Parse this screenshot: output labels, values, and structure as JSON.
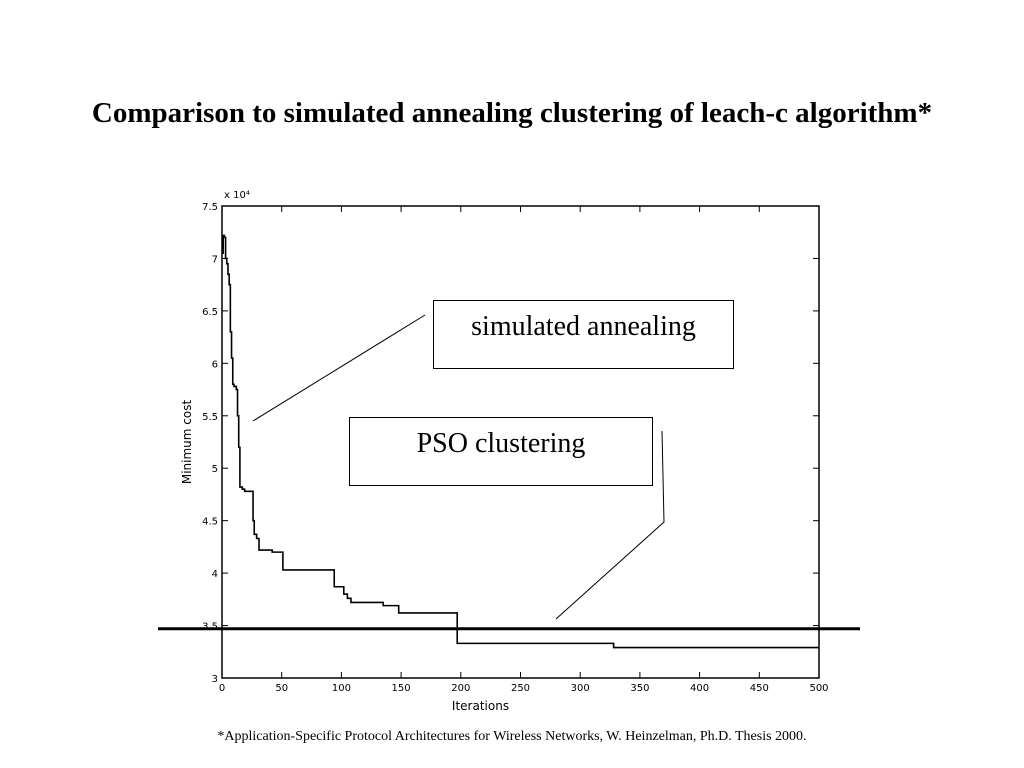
{
  "slide": {
    "title": "Comparison to simulated annealing clustering of leach-c algorithm*",
    "footnote": "*Application-Specific Protocol Architectures for Wireless Networks, W. Heinzelman, Ph.D. Thesis 2000."
  },
  "callouts": {
    "simulated_annealing": "simulated annealing",
    "pso_clustering": "PSO clustering"
  },
  "chart_data": {
    "type": "line",
    "xlabel": "Iterations",
    "ylabel": "Minimum cost",
    "y_exponent_label": "x 10⁴",
    "xlim": [
      0,
      500
    ],
    "ylim": [
      3,
      7.5
    ],
    "x_ticks": [
      "0",
      "50",
      "100",
      "150",
      "200",
      "250",
      "300",
      "350",
      "400",
      "450",
      "500"
    ],
    "y_ticks": [
      "3",
      "3.5",
      "4",
      "4.5",
      "5",
      "5.5",
      "6",
      "6.5",
      "7",
      "7.5"
    ],
    "grid": false,
    "series": [
      {
        "name": "simulated annealing",
        "color": "#000000",
        "step": true,
        "points": [
          [
            0,
            7.05
          ],
          [
            1,
            7.22
          ],
          [
            2,
            7.2
          ],
          [
            3,
            7.0
          ],
          [
            4,
            6.95
          ],
          [
            5,
            6.85
          ],
          [
            6,
            6.75
          ],
          [
            7,
            6.3
          ],
          [
            8,
            6.05
          ],
          [
            9,
            5.8
          ],
          [
            10,
            5.78
          ],
          [
            12,
            5.75
          ],
          [
            13,
            5.5
          ],
          [
            14,
            5.2
          ],
          [
            15,
            4.82
          ],
          [
            17,
            4.8
          ],
          [
            19,
            4.78
          ],
          [
            25,
            4.78
          ],
          [
            26,
            4.5
          ],
          [
            27,
            4.37
          ],
          [
            29,
            4.33
          ],
          [
            31,
            4.22
          ],
          [
            41,
            4.22
          ],
          [
            42,
            4.2
          ],
          [
            50,
            4.2
          ],
          [
            51,
            4.03
          ],
          [
            93,
            4.03
          ],
          [
            94,
            3.87
          ],
          [
            101,
            3.87
          ],
          [
            102,
            3.8
          ],
          [
            105,
            3.76
          ],
          [
            108,
            3.72
          ],
          [
            134,
            3.72
          ],
          [
            135,
            3.69
          ],
          [
            147,
            3.69
          ],
          [
            148,
            3.62
          ],
          [
            196,
            3.62
          ],
          [
            197,
            3.33
          ],
          [
            327,
            3.33
          ],
          [
            328,
            3.29
          ],
          [
            500,
            3.29
          ]
        ]
      },
      {
        "name": "PSO clustering",
        "color": "#000000",
        "points": [
          [
            0,
            3.47
          ],
          [
            500,
            3.47
          ]
        ]
      }
    ]
  }
}
